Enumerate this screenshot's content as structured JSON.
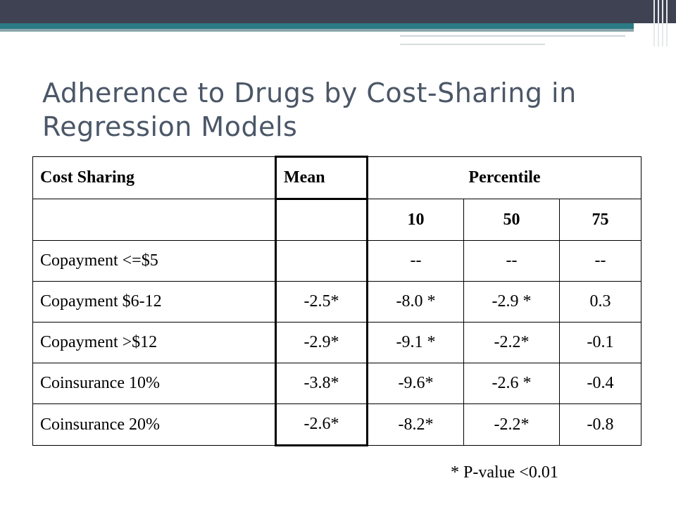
{
  "slide": {
    "title": "Adherence to Drugs by Cost-Sharing in Regression Models",
    "footnote": "* P-value <0.01"
  },
  "table": {
    "headers": {
      "cost_sharing": "Cost Sharing",
      "mean": "Mean",
      "percentile": "Percentile"
    },
    "percentile_levels": [
      "10",
      "50",
      "75"
    ],
    "rows": [
      {
        "label": "Copayment <=$5",
        "mean": "",
        "p10": "--",
        "p50": "--",
        "p75": "--"
      },
      {
        "label": "Copayment $6-12",
        "mean": "-2.5*",
        "p10": "-8.0 *",
        "p50": "-2.9 *",
        "p75": "0.3"
      },
      {
        "label": "Copayment >$12",
        "mean": "-2.9*",
        "p10": "-9.1 *",
        "p50": "-2.2*",
        "p75": "-0.1"
      },
      {
        "label": "Coinsurance 10%",
        "mean": "-3.8*",
        "p10": "-9.6*",
        "p50": "-2.6 *",
        "p75": "-0.4"
      },
      {
        "label": "Coinsurance 20%",
        "mean": "-2.6*",
        "p10": "-8.2*",
        "p50": "-2.2*",
        "p75": "-0.8"
      }
    ]
  },
  "colors": {
    "header_bar": "#3f4253",
    "accent_teal": "#2b7a85",
    "title_text": "#4b5767"
  }
}
